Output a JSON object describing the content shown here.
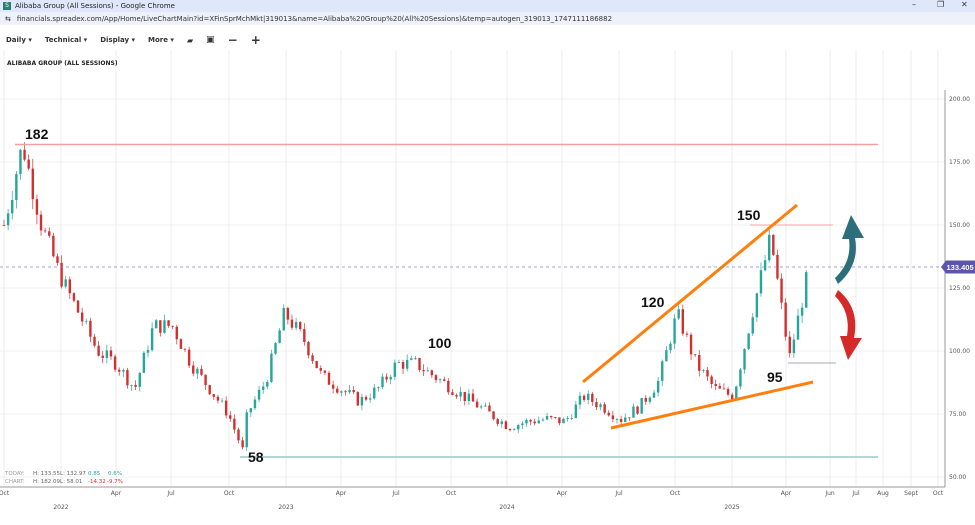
{
  "window": {
    "title": "Alibaba Group (All Sessions) - Google Chrome",
    "app_icon": "S",
    "url": "financials.spreadex.com/App/Home/LiveChartMain?id=XFinSprMchMkt|319013&name=Alibaba%20Group%20(All%20Sessions)&temp=autogen_319013_1747111186882",
    "controls": [
      "minimize",
      "restore",
      "close"
    ]
  },
  "toolbar": {
    "items": [
      {
        "label": "Daily ▾"
      },
      {
        "label": "Technical ▾"
      },
      {
        "label": "Display ▾"
      },
      {
        "label": "More ▾"
      }
    ],
    "icons": [
      "folder-icon",
      "save-icon",
      "zoom-out-icon",
      "zoom-in-icon"
    ]
  },
  "chart_title": "ALIBABA GROUP (ALL SESSIONS)",
  "stats": {
    "today": {
      "label": "TODAY:",
      "h": "H: 133.55",
      "l": "L: 132.97",
      "chg": "0.85",
      "pct": "0.6%"
    },
    "chart": {
      "label": "CHART:",
      "h": "H: 182.09",
      "l": "L: 58.01",
      "chg": "-14.32",
      "pct": "-9.7%"
    }
  },
  "colors": {
    "up": "#26a69a",
    "down": "#d32f2f",
    "orange": "#ff7f0e",
    "resistance": "#f4a0a0",
    "support": "#9ec7c7",
    "price_tag": "#5c55a8"
  },
  "chart_data": {
    "type": "candlestick",
    "ylim": [
      50,
      200
    ],
    "y_ticks": [
      "200.00",
      "175.00",
      "150.00",
      "125.00",
      "100.00",
      "75.00",
      "50.00"
    ],
    "x_ticks": [
      {
        "label": "Oct",
        "year": ""
      },
      {
        "label": "",
        "year": "2022"
      },
      {
        "label": "Apr"
      },
      {
        "label": "Jul"
      },
      {
        "label": "Oct"
      },
      {
        "label": "",
        "year": "2023"
      },
      {
        "label": "Apr"
      },
      {
        "label": "Jul"
      },
      {
        "label": "Oct"
      },
      {
        "label": "",
        "year": "2024"
      },
      {
        "label": "Apr"
      },
      {
        "label": "Jul"
      },
      {
        "label": "Oct"
      },
      {
        "label": "",
        "year": "2025"
      },
      {
        "label": "Apr"
      },
      {
        "label": "Jun"
      },
      {
        "label": "Jul"
      },
      {
        "label": "Aug"
      },
      {
        "label": "Sept"
      },
      {
        "label": "Oct"
      }
    ],
    "current_price": "133.405",
    "approx_closes": [
      [
        "2021-10",
        150
      ],
      [
        "2021-11",
        182
      ],
      [
        "2021-12",
        150
      ],
      [
        "2022-01",
        130
      ],
      [
        "2022-02",
        115
      ],
      [
        "2022-03",
        100
      ],
      [
        "2022-04",
        95
      ],
      [
        "2022-05",
        85
      ],
      [
        "2022-06",
        110
      ],
      [
        "2022-07",
        110
      ],
      [
        "2022-08",
        95
      ],
      [
        "2022-09",
        85
      ],
      [
        "2022-10",
        75
      ],
      [
        "2022-10-25",
        60
      ],
      [
        "2022-11",
        75
      ],
      [
        "2022-12",
        88
      ],
      [
        "2023-01",
        115
      ],
      [
        "2023-02",
        105
      ],
      [
        "2023-03",
        90
      ],
      [
        "2023-04",
        85
      ],
      [
        "2023-05",
        80
      ],
      [
        "2023-06",
        85
      ],
      [
        "2023-07",
        95
      ],
      [
        "2023-08",
        95
      ],
      [
        "2023-09",
        90
      ],
      [
        "2023-10",
        85
      ],
      [
        "2023-11",
        80
      ],
      [
        "2023-12",
        75
      ],
      [
        "2024-01",
        70
      ],
      [
        "2024-02",
        72
      ],
      [
        "2024-03",
        73
      ],
      [
        "2024-04",
        72
      ],
      [
        "2024-05",
        82
      ],
      [
        "2024-06",
        78
      ],
      [
        "2024-07",
        73
      ],
      [
        "2024-08",
        78
      ],
      [
        "2024-09",
        88
      ],
      [
        "2024-10",
        115
      ],
      [
        "2024-11",
        95
      ],
      [
        "2024-12",
        85
      ],
      [
        "2025-01",
        82
      ],
      [
        "2025-02",
        115
      ],
      [
        "2025-03",
        145
      ],
      [
        "2025-04",
        97
      ],
      [
        "2025-05",
        131
      ]
    ],
    "annotations": [
      "182",
      "100",
      "120",
      "150",
      "95",
      "58"
    ]
  }
}
